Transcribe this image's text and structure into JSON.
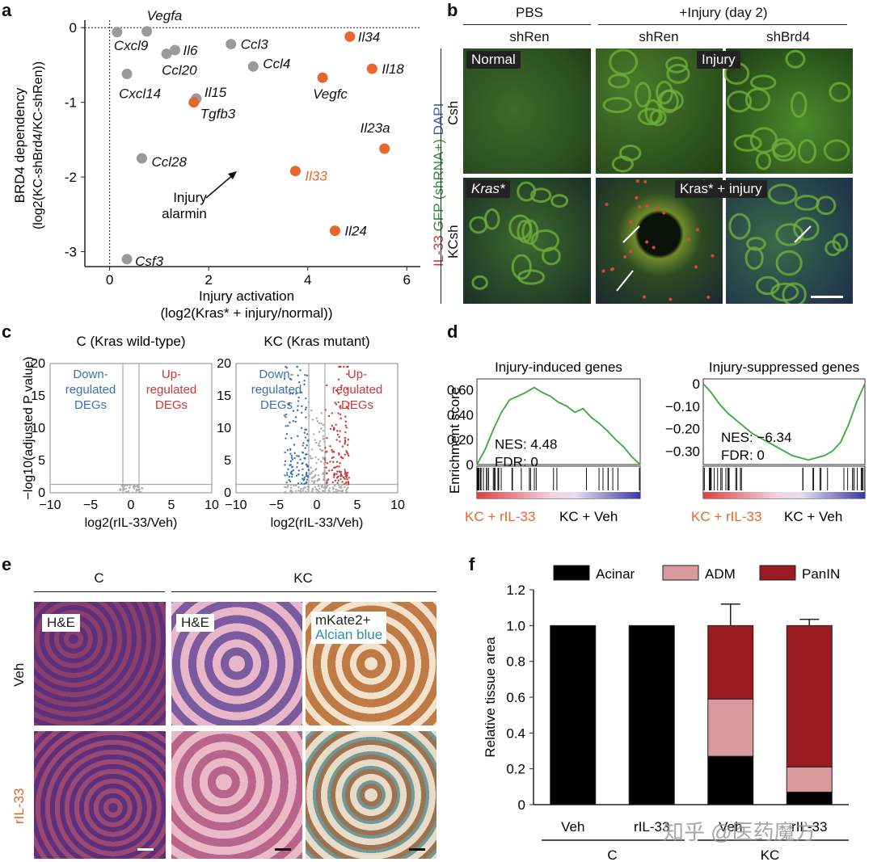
{
  "panel_labels": {
    "a": "a",
    "b": "b",
    "c": "c",
    "d": "d",
    "e": "e",
    "f": "f"
  },
  "colors": {
    "orange": "#E8652D",
    "grey": "#9A9A9A",
    "blue": "#3A6FB5",
    "red": "#C8393A",
    "acinar": "#000000",
    "adm": "#D89A9D",
    "panin": "#9B1B22"
  },
  "panel_a": {
    "ylabel_line1": "BRD4 dependency",
    "ylabel_line2": "(log2(KC-shBrd4/KC-shRen))",
    "xlabel_line1": "Injury activation",
    "xlabel_line2": "(log2(Kras* + injury/normal))",
    "annotation": "Injury\nalarmin"
  },
  "panel_b": {
    "col_group_1": "PBS",
    "col_group_2": "+Injury (day 2)",
    "sub_cols": [
      "shRen",
      "shRen",
      "shBrd4"
    ],
    "row_labels": [
      "Csh",
      "KCsh"
    ],
    "stain_label": {
      "il33": "IL-33",
      "gfp": "GFP (shRNA+)",
      "dapi": "DAPI"
    },
    "tags": {
      "normal": "Normal",
      "injury": "Injury",
      "kras": "Kras*",
      "kras_injury": "Kras* + injury"
    }
  },
  "panel_c": {
    "titles": [
      "C (Kras wild-type)",
      "KC (Kras mutant)"
    ],
    "ylabel": "−log10(adjusted P value)",
    "xlabel": "log2(rIL-33/Veh)",
    "down": "Down-\nregulated\nDEGs",
    "up": "Up-\nregulated\nDEGs"
  },
  "panel_d": {
    "ylabel": "Enrichment score",
    "left_title": "Injury-induced genes",
    "right_title": "Injury-suppressed genes",
    "left_stats": [
      "NES: 4.48",
      "FDR: 0"
    ],
    "right_stats": [
      "NES: −6.34",
      "FDR: 0"
    ],
    "left_bottom": "KC + rIL-33",
    "right_bottom": "KC + Veh"
  },
  "panel_e": {
    "col_C": "C",
    "col_KC": "KC",
    "row_veh": "Veh",
    "row_ril33": "rIL-33",
    "tag_he": "H&E",
    "tag_mkate": "mKate2+",
    "tag_alcian": "Alcian blue"
  },
  "panel_f": {
    "ylabel": "Relative tissue area",
    "legend": [
      "Acinar",
      "ADM",
      "PanIN"
    ],
    "xcats": [
      "Veh",
      "rIL-33",
      "Veh",
      "rIL-33"
    ],
    "groups": [
      "C",
      "KC"
    ]
  },
  "watermark": "知乎 @医药魔方",
  "chart_data": [
    {
      "type": "scatter",
      "panel": "a",
      "xlim": [
        -0.5,
        6.6
      ],
      "ylim": [
        -3.2,
        0.1
      ],
      "xticks": [
        "0",
        "2",
        "4",
        "6"
      ],
      "yticks": [
        "0",
        "-1",
        "-2",
        "-3"
      ],
      "points": [
        {
          "label": "Vegfa",
          "x": 0.75,
          "y": -0.05,
          "group": "grey"
        },
        {
          "label": "Cxcl9",
          "x": 0.15,
          "y": -0.06,
          "group": "grey"
        },
        {
          "label": "Il6",
          "x": 1.32,
          "y": -0.3,
          "group": "grey"
        },
        {
          "label": "Ccl20",
          "x": 1.15,
          "y": -0.35,
          "group": "grey"
        },
        {
          "label": "Ccl3",
          "x": 2.45,
          "y": -0.22,
          "group": "grey"
        },
        {
          "label": "Ccl4",
          "x": 2.9,
          "y": -0.52,
          "group": "grey"
        },
        {
          "label": "Cxcl14",
          "x": 0.35,
          "y": -0.62,
          "group": "grey"
        },
        {
          "label": "Il15",
          "x": 1.75,
          "y": -0.95,
          "group": "grey"
        },
        {
          "label": "Ccl28",
          "x": 0.65,
          "y": -1.75,
          "group": "grey"
        },
        {
          "label": "Csf3",
          "x": 0.35,
          "y": -3.1,
          "group": "grey"
        },
        {
          "label": "Il34",
          "x": 4.85,
          "y": -0.12,
          "group": "orange"
        },
        {
          "label": "Il18",
          "x": 5.3,
          "y": -0.55,
          "group": "orange"
        },
        {
          "label": "Vegfc",
          "x": 4.3,
          "y": -0.67,
          "group": "orange"
        },
        {
          "label": "Tgfb3",
          "x": 1.7,
          "y": -1.0,
          "group": "orange"
        },
        {
          "label": "Il23a",
          "x": 5.55,
          "y": -1.62,
          "group": "orange"
        },
        {
          "label": "Il33",
          "x": 3.75,
          "y": -1.92,
          "group": "orange"
        },
        {
          "label": "Il24",
          "x": 4.55,
          "y": -2.72,
          "group": "orange"
        }
      ]
    },
    {
      "type": "scatter",
      "panel": "c-left",
      "xlim": [
        -10,
        10
      ],
      "ylim": [
        0,
        20
      ],
      "xticks": [
        "−10",
        "−5",
        "0",
        "5",
        "10"
      ],
      "yticks": [
        "0",
        "5",
        "10",
        "15",
        "20"
      ]
    },
    {
      "type": "scatter",
      "panel": "c-right",
      "xlim": [
        -10,
        10
      ],
      "ylim": [
        0,
        20
      ],
      "xticks": [
        "−10",
        "−5",
        "0",
        "5",
        "10"
      ],
      "yticks": [
        "0",
        "5",
        "10",
        "15",
        "20"
      ]
    },
    {
      "type": "line",
      "panel": "d-left",
      "ylim": [
        0,
        0.65
      ],
      "yticks": [
        "0",
        "0.20",
        "0.40",
        "0.60"
      ],
      "x": [
        0,
        0.05,
        0.1,
        0.15,
        0.2,
        0.25,
        0.3,
        0.35,
        0.4,
        0.45,
        0.5,
        0.55,
        0.6,
        0.65,
        0.7,
        0.75,
        0.8,
        0.85,
        0.9,
        0.95,
        1.0
      ],
      "values": [
        0,
        0.12,
        0.28,
        0.42,
        0.52,
        0.55,
        0.58,
        0.62,
        0.58,
        0.55,
        0.5,
        0.47,
        0.42,
        0.45,
        0.38,
        0.33,
        0.27,
        0.2,
        0.14,
        0.06,
        0
      ]
    },
    {
      "type": "line",
      "panel": "d-right",
      "ylim": [
        -0.36,
        0
      ],
      "yticks": [
        "0",
        "−0.10",
        "−0.20",
        "−0.30"
      ],
      "x": [
        0,
        0.05,
        0.1,
        0.15,
        0.2,
        0.25,
        0.3,
        0.35,
        0.4,
        0.45,
        0.5,
        0.55,
        0.6,
        0.65,
        0.7,
        0.75,
        0.8,
        0.85,
        0.9,
        0.95,
        1.0
      ],
      "values": [
        0,
        -0.04,
        -0.09,
        -0.13,
        -0.16,
        -0.19,
        -0.22,
        -0.24,
        -0.26,
        -0.28,
        -0.3,
        -0.32,
        -0.33,
        -0.34,
        -0.33,
        -0.32,
        -0.3,
        -0.26,
        -0.18,
        -0.08,
        0
      ]
    },
    {
      "type": "bar",
      "panel": "f",
      "stacked": true,
      "categories": [
        "Veh",
        "rIL-33",
        "Veh",
        "rIL-33"
      ],
      "ylim": [
        0,
        1.2
      ],
      "yticks": [
        "0",
        "0.2",
        "0.4",
        "0.6",
        "0.8",
        "1.0",
        "1.2"
      ],
      "series": [
        {
          "name": "Acinar",
          "values": [
            1.0,
            1.0,
            0.27,
            0.07
          ],
          "err": [
            0,
            0,
            0.18,
            0.04
          ]
        },
        {
          "name": "ADM",
          "values": [
            0,
            0,
            0.32,
            0.14
          ],
          "err": [
            0,
            0,
            0.09,
            0.015
          ]
        },
        {
          "name": "PanIN",
          "values": [
            0,
            0,
            0.41,
            0.79
          ],
          "err": [
            0,
            0,
            0.12,
            0.035
          ]
        }
      ]
    }
  ]
}
